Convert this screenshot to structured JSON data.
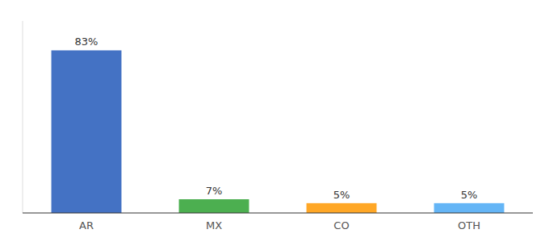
{
  "chart_data": {
    "type": "bar",
    "categories": [
      "AR",
      "MX",
      "CO",
      "OTH"
    ],
    "values": [
      83,
      7,
      5,
      5
    ],
    "value_labels": [
      "83%",
      "7%",
      "5%",
      "5%"
    ],
    "colors": [
      "#4472C4",
      "#4CAF50",
      "#FFA726",
      "#64B5F6"
    ],
    "ylim": [
      0,
      98
    ],
    "data_labels": true,
    "tick_labels": "x",
    "grid": false
  }
}
